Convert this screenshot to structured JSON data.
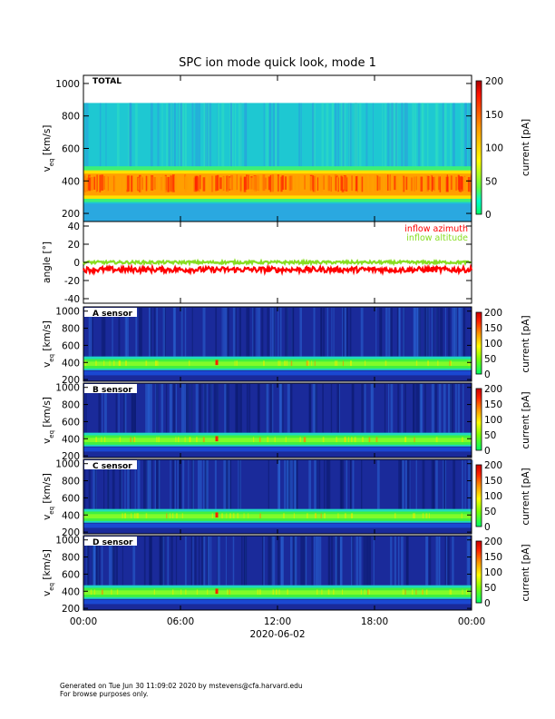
{
  "chart_data": {
    "type": "heatmap",
    "title": "SPC ion mode quick look, mode 1",
    "x_axis": {
      "ticks": [
        "00:00",
        "06:00",
        "12:00",
        "18:00",
        "00:00"
      ],
      "date_label": "2020-06-02"
    },
    "total_panel": {
      "label": "TOTAL",
      "ylabel": "v_eq [km/s]",
      "ylabel_main": "v",
      "ylabel_sub": "eq",
      "ylabel_unit": "[km/s]",
      "ylim": [
        150,
        1050
      ],
      "yticks": [
        "1000",
        "800",
        "600",
        "400",
        "200"
      ],
      "colorbar": {
        "label": "current [pA]",
        "ticks": [
          "200",
          "150",
          "100",
          "50",
          "0"
        ],
        "range": [
          0,
          200
        ]
      },
      "description": "Ion current spectrogram; peak current ~300-450 km/s"
    },
    "angle_panel": {
      "ylabel": "angle [°]",
      "ylim": [
        -45,
        45
      ],
      "yticks": [
        "40",
        "20",
        "0",
        "-20",
        "-40"
      ],
      "series": [
        {
          "name": "inflow azimuth",
          "color": "#ff0000",
          "approx_value": -8
        },
        {
          "name": "inflow altitude",
          "color": "#88dd22",
          "approx_value": 0
        }
      ]
    },
    "sensor_panels": [
      {
        "label": "A sensor"
      },
      {
        "label": "B sensor"
      },
      {
        "label": "C sensor"
      },
      {
        "label": "D sensor"
      }
    ],
    "sensor_axis": {
      "ylabel_main": "v",
      "ylabel_sub": "eq",
      "ylabel_unit": "[km/s]",
      "yticks": [
        "1000",
        "800",
        "600",
        "400",
        "200"
      ],
      "colorbar_ticks": [
        "200",
        "150",
        "100",
        "50",
        "0"
      ],
      "colorbar_label": "current [pA]"
    }
  },
  "footer": {
    "line1": "Generated on Tue Jun 30 11:09:02 2020 by mstevens@cfa.harvard.edu",
    "line2": "For browse purposes only."
  },
  "colors": {
    "total_bg": "#1ec8d2",
    "sensor_bg": "#1a2a9a"
  }
}
